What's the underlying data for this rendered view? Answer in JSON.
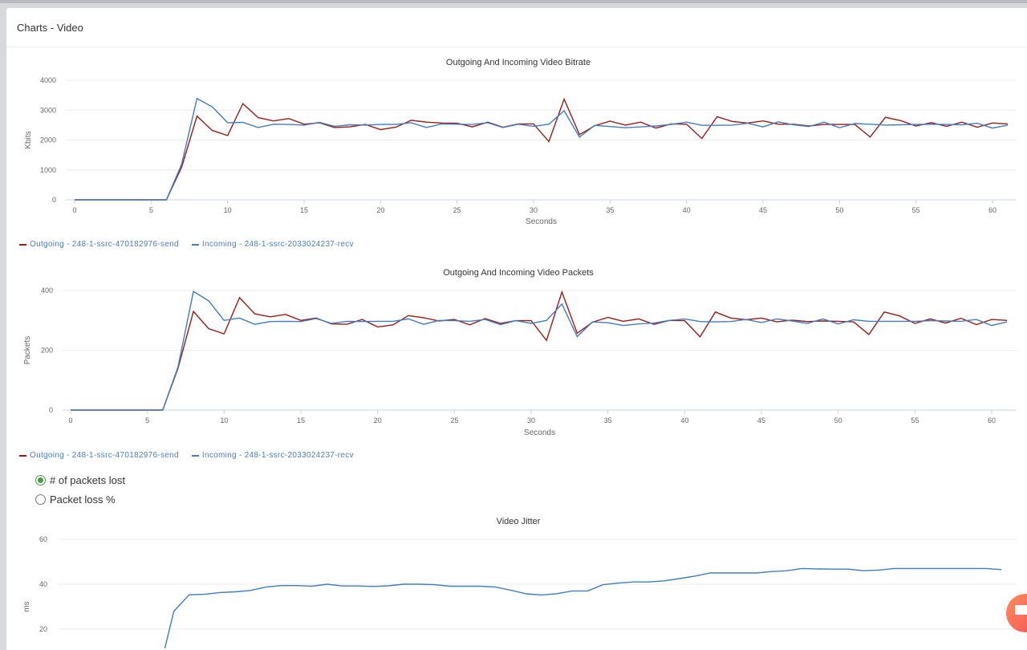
{
  "header": {
    "title": "Charts - Video"
  },
  "colors": {
    "outgoing": "#a01a14",
    "incoming": "#3f7dc4",
    "legend_text": "#4a7fc1",
    "radio_selected": "#4a9a48",
    "chat_button": "#f5635a"
  },
  "radios": {
    "options": [
      {
        "label": "# of packets lost",
        "selected": true
      },
      {
        "label": "Packet loss %",
        "selected": false
      }
    ]
  },
  "chat_button": {
    "icon": "chat-bubble-icon"
  },
  "chart_data": [
    {
      "type": "line",
      "title": "Outgoing And Incoming Video Bitrate",
      "xlabel": "Seconds",
      "ylabel": "Kbits",
      "xlim": [
        0,
        61
      ],
      "ylim": [
        0,
        4000
      ],
      "xticks": [
        "0",
        "5",
        "10",
        "15",
        "20",
        "25",
        "30",
        "35",
        "40",
        "45",
        "50",
        "55",
        "60"
      ],
      "yticks": [
        "0",
        "1000",
        "2000",
        "3000",
        "4000"
      ],
      "grid": true,
      "legend": "bottom-left",
      "x": [
        0,
        1,
        2,
        3,
        4,
        5,
        6,
        7,
        8,
        9,
        10,
        11,
        12,
        13,
        14,
        15,
        16,
        17,
        18,
        19,
        20,
        21,
        22,
        23,
        24,
        25,
        26,
        27,
        28,
        29,
        30,
        31,
        32,
        33,
        34,
        35,
        36,
        37,
        38,
        39,
        40,
        41,
        42,
        43,
        44,
        45,
        46,
        47,
        48,
        49,
        50,
        51,
        52,
        53,
        54,
        55,
        56,
        57,
        58,
        59,
        60,
        61
      ],
      "series": [
        {
          "name": "Outgoing - 248-1-ssrc-470182976-send",
          "color": "#a01a14",
          "values": [
            0,
            0,
            0,
            0,
            0,
            0,
            0,
            1100,
            2800,
            2320,
            2150,
            3220,
            2750,
            2640,
            2720,
            2530,
            2580,
            2420,
            2440,
            2520,
            2350,
            2430,
            2660,
            2600,
            2570,
            2560,
            2440,
            2600,
            2430,
            2540,
            2540,
            1950,
            3370,
            2180,
            2480,
            2630,
            2500,
            2600,
            2400,
            2540,
            2530,
            2050,
            2780,
            2620,
            2570,
            2640,
            2530,
            2530,
            2470,
            2520,
            2520,
            2520,
            2100,
            2760,
            2650,
            2470,
            2580,
            2460,
            2600,
            2430,
            2570,
            2540
          ]
        },
        {
          "name": "Incoming - 248-1-ssrc-2033024237-recv",
          "color": "#3f7dc4",
          "values": [
            0,
            0,
            0,
            0,
            0,
            0,
            0,
            1200,
            3390,
            3110,
            2580,
            2590,
            2420,
            2530,
            2520,
            2500,
            2590,
            2460,
            2510,
            2500,
            2520,
            2520,
            2580,
            2420,
            2540,
            2530,
            2520,
            2580,
            2420,
            2530,
            2460,
            2530,
            2980,
            2100,
            2490,
            2450,
            2410,
            2440,
            2470,
            2520,
            2600,
            2490,
            2490,
            2500,
            2560,
            2440,
            2610,
            2510,
            2450,
            2600,
            2410,
            2550,
            2530,
            2500,
            2510,
            2520,
            2530,
            2520,
            2510,
            2560,
            2400,
            2500
          ]
        }
      ]
    },
    {
      "type": "line",
      "title": "Outgoing And Incoming Video Packets",
      "xlabel": "Seconds",
      "ylabel": "Packets",
      "xlim": [
        0,
        61
      ],
      "ylim": [
        0,
        400
      ],
      "xticks": [
        "0",
        "5",
        "10",
        "15",
        "20",
        "25",
        "30",
        "35",
        "40",
        "45",
        "50",
        "55",
        "60"
      ],
      "yticks": [
        "0",
        "200",
        "400"
      ],
      "grid": true,
      "legend": "bottom-left",
      "x": [
        0,
        1,
        2,
        3,
        4,
        5,
        6,
        7,
        8,
        9,
        10,
        11,
        12,
        13,
        14,
        15,
        16,
        17,
        18,
        19,
        20,
        21,
        22,
        23,
        24,
        25,
        26,
        27,
        28,
        29,
        30,
        31,
        32,
        33,
        34,
        35,
        36,
        37,
        38,
        39,
        40,
        41,
        42,
        43,
        44,
        45,
        46,
        47,
        48,
        49,
        50,
        51,
        52,
        53,
        54,
        55,
        56,
        57,
        58,
        59,
        60,
        61
      ],
      "series": [
        {
          "name": "Outgoing - 248-1-ssrc-470182976-send",
          "color": "#a01a14",
          "values": [
            0,
            0,
            0,
            0,
            0,
            0,
            0,
            140,
            330,
            272,
            255,
            376,
            322,
            312,
            320,
            300,
            308,
            288,
            287,
            303,
            278,
            285,
            316,
            309,
            298,
            303,
            285,
            306,
            290,
            299,
            299,
            233,
            395,
            257,
            294,
            310,
            297,
            305,
            287,
            300,
            299,
            245,
            328,
            308,
            302,
            308,
            295,
            301,
            296,
            298,
            297,
            295,
            253,
            328,
            315,
            290,
            305,
            291,
            307,
            286,
            303,
            300
          ]
        },
        {
          "name": "Incoming - 248-1-ssrc-2033024237-recv",
          "color": "#3f7dc4",
          "values": [
            0,
            0,
            0,
            0,
            0,
            0,
            0,
            145,
            397,
            365,
            300,
            308,
            287,
            296,
            297,
            296,
            306,
            290,
            297,
            296,
            297,
            297,
            305,
            287,
            300,
            299,
            297,
            303,
            286,
            299,
            290,
            300,
            355,
            246,
            295,
            292,
            283,
            288,
            291,
            300,
            305,
            296,
            295,
            296,
            303,
            293,
            305,
            298,
            290,
            305,
            288,
            302,
            297,
            297,
            297,
            297,
            299,
            298,
            297,
            303,
            283,
            295
          ]
        }
      ]
    },
    {
      "type": "line",
      "title": "Video Jitter",
      "xlabel": "",
      "ylabel": "ms",
      "xlim": [
        0,
        61
      ],
      "ylim": [
        0,
        60
      ],
      "yticks": [
        "20",
        "40",
        "60"
      ],
      "grid": true,
      "x": [
        0,
        1,
        2,
        3,
        4,
        5,
        6,
        7,
        8,
        9,
        10,
        11,
        12,
        13,
        14,
        15,
        16,
        17,
        18,
        19,
        20,
        21,
        22,
        23,
        24,
        25,
        26,
        27,
        28,
        29,
        30,
        31,
        32,
        33,
        34,
        35,
        36,
        37,
        38,
        39,
        40,
        41,
        42,
        43,
        44,
        45,
        46,
        47,
        48,
        49,
        50,
        51,
        52,
        53,
        54,
        55,
        56,
        57,
        58,
        59,
        60,
        61
      ],
      "series": [
        {
          "color": "#3f7dc4",
          "values": [
            0,
            0,
            0,
            0,
            0,
            0,
            0,
            28,
            35.3,
            35.5,
            36.3,
            36.6,
            37.2,
            38.7,
            39.4,
            39.4,
            39.1,
            40,
            39.2,
            39.2,
            39,
            39.3,
            40,
            40,
            39.8,
            39.1,
            39.1,
            39.1,
            38.7,
            37.3,
            35.7,
            35.2,
            35.8,
            37,
            37,
            39.8,
            40.5,
            41,
            41,
            41.5,
            42.5,
            43.6,
            45,
            45,
            45,
            45,
            45.6,
            46,
            47,
            46.8,
            46.7,
            46.7,
            46,
            46.3,
            47,
            47,
            47,
            47,
            47,
            47,
            47,
            46.5
          ]
        }
      ]
    }
  ]
}
